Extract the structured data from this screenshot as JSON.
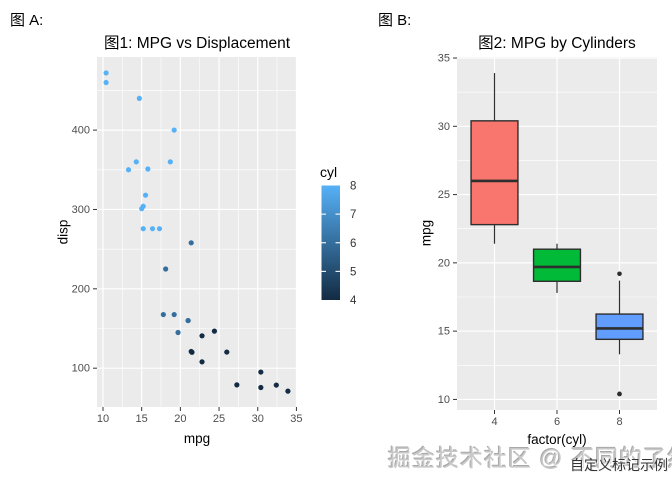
{
  "figure_a_label": "图 A:",
  "figure_b_label": "图 B:",
  "watermark": {
    "text": "掘金技术社区 @ 不同的了然",
    "caption": "自定义标记示例"
  },
  "colors": {
    "panel_bg": "#EBEBEB",
    "grid": "#FFFFFF",
    "tick_text": "#4D4D4D",
    "tick_mark": "#333333",
    "box_stroke": "#2E2E2E"
  },
  "chart_data": [
    {
      "type": "scatter",
      "title": "图1: MPG vs Displacement",
      "xlabel": "mpg",
      "ylabel": "disp",
      "x_ticks": [
        10,
        15,
        20,
        25,
        30,
        35
      ],
      "y_ticks": [
        100,
        200,
        300,
        400
      ],
      "x_minor": [
        12.5,
        17.5,
        22.5,
        27.5,
        32.5
      ],
      "y_minor": [
        150,
        250,
        350,
        450
      ],
      "xlim": [
        9.225,
        35.075
      ],
      "ylim": [
        51.1,
        492.1
      ],
      "grid": true,
      "legend_position": "right",
      "color_scale": {
        "title": "cyl",
        "low": "#132B43",
        "high": "#56B1F7",
        "domain": [
          4,
          8
        ],
        "tick_labels": [
          8,
          7,
          6,
          5,
          4
        ]
      },
      "points": [
        {
          "mpg": 21.0,
          "disp": 160.0,
          "cyl": 6
        },
        {
          "mpg": 21.0,
          "disp": 160.0,
          "cyl": 6
        },
        {
          "mpg": 22.8,
          "disp": 108.0,
          "cyl": 4
        },
        {
          "mpg": 21.4,
          "disp": 258.0,
          "cyl": 6
        },
        {
          "mpg": 18.7,
          "disp": 360.0,
          "cyl": 8
        },
        {
          "mpg": 18.1,
          "disp": 225.0,
          "cyl": 6
        },
        {
          "mpg": 14.3,
          "disp": 360.0,
          "cyl": 8
        },
        {
          "mpg": 24.4,
          "disp": 146.7,
          "cyl": 4
        },
        {
          "mpg": 22.8,
          "disp": 140.8,
          "cyl": 4
        },
        {
          "mpg": 19.2,
          "disp": 167.6,
          "cyl": 6
        },
        {
          "mpg": 17.8,
          "disp": 167.6,
          "cyl": 6
        },
        {
          "mpg": 16.4,
          "disp": 275.8,
          "cyl": 8
        },
        {
          "mpg": 17.3,
          "disp": 275.8,
          "cyl": 8
        },
        {
          "mpg": 15.2,
          "disp": 275.8,
          "cyl": 8
        },
        {
          "mpg": 10.4,
          "disp": 472.0,
          "cyl": 8
        },
        {
          "mpg": 10.4,
          "disp": 460.0,
          "cyl": 8
        },
        {
          "mpg": 14.7,
          "disp": 440.0,
          "cyl": 8
        },
        {
          "mpg": 32.4,
          "disp": 78.7,
          "cyl": 4
        },
        {
          "mpg": 30.4,
          "disp": 75.7,
          "cyl": 4
        },
        {
          "mpg": 33.9,
          "disp": 71.1,
          "cyl": 4
        },
        {
          "mpg": 21.5,
          "disp": 120.1,
          "cyl": 4
        },
        {
          "mpg": 15.5,
          "disp": 318.0,
          "cyl": 8
        },
        {
          "mpg": 15.2,
          "disp": 304.0,
          "cyl": 8
        },
        {
          "mpg": 13.3,
          "disp": 350.0,
          "cyl": 8
        },
        {
          "mpg": 19.2,
          "disp": 400.0,
          "cyl": 8
        },
        {
          "mpg": 27.3,
          "disp": 79.0,
          "cyl": 4
        },
        {
          "mpg": 26.0,
          "disp": 120.3,
          "cyl": 4
        },
        {
          "mpg": 30.4,
          "disp": 95.1,
          "cyl": 4
        },
        {
          "mpg": 15.8,
          "disp": 351.0,
          "cyl": 8
        },
        {
          "mpg": 19.7,
          "disp": 145.0,
          "cyl": 6
        },
        {
          "mpg": 15.0,
          "disp": 301.0,
          "cyl": 8
        },
        {
          "mpg": 21.4,
          "disp": 121.0,
          "cyl": 4
        }
      ]
    },
    {
      "type": "boxplot",
      "title": "图2: MPG by Cylinders",
      "xlabel": "factor(cyl)",
      "ylabel": "mpg",
      "categories": [
        "4",
        "6",
        "8"
      ],
      "y_ticks": [
        10,
        15,
        20,
        25,
        30,
        35
      ],
      "y_minor": [
        12.5,
        17.5,
        22.5,
        27.5,
        32.5
      ],
      "ylim": [
        9.225,
        35.075
      ],
      "grid": true,
      "boxes": [
        {
          "category": "4",
          "fill": "#F8766D",
          "whisker_low": 21.4,
          "q1": 22.8,
          "median": 26.0,
          "q3": 30.4,
          "whisker_high": 33.9,
          "outliers": []
        },
        {
          "category": "6",
          "fill": "#00BA38",
          "whisker_low": 17.8,
          "q1": 18.65,
          "median": 19.7,
          "q3": 21.0,
          "whisker_high": 21.4,
          "outliers": []
        },
        {
          "category": "8",
          "fill": "#619CFF",
          "whisker_low": 13.3,
          "q1": 14.4,
          "median": 15.2,
          "q3": 16.25,
          "whisker_high": 18.7,
          "outliers": [
            10.4,
            10.4,
            19.2
          ]
        }
      ]
    }
  ]
}
